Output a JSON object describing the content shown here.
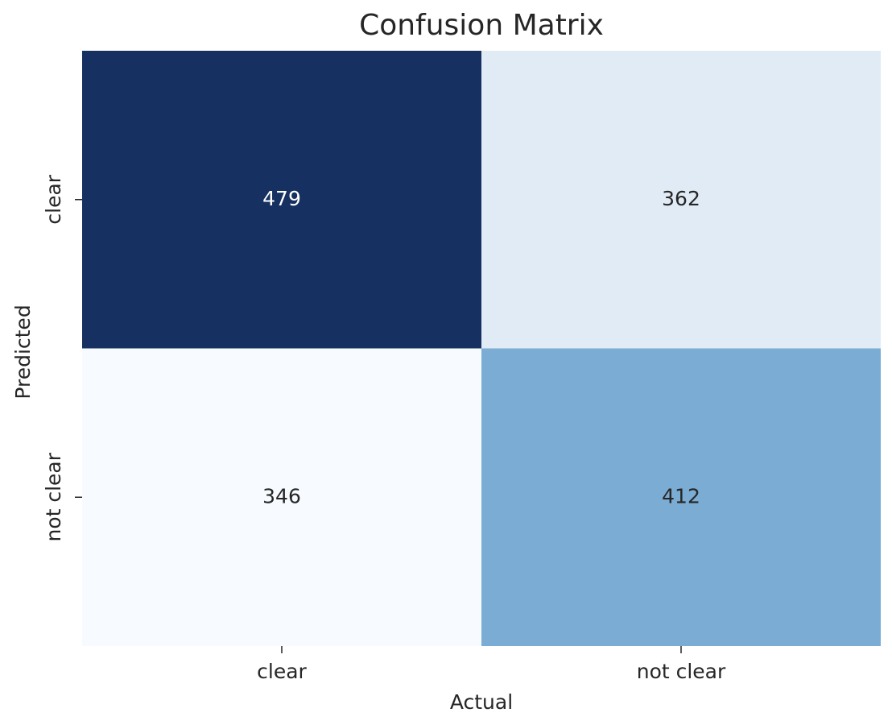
{
  "chart_data": {
    "type": "heatmap",
    "title": "Confusion Matrix",
    "x_label": "Actual",
    "y_label": "Predicted",
    "x_categories": [
      "clear",
      "not clear"
    ],
    "y_categories": [
      "clear",
      "not clear"
    ],
    "values": [
      [
        479,
        362
      ],
      [
        346,
        412
      ]
    ],
    "colors": [
      [
        "#163062",
        "#e1ebf6"
      ],
      [
        "#f7fbff",
        "#7bacd3"
      ]
    ]
  }
}
